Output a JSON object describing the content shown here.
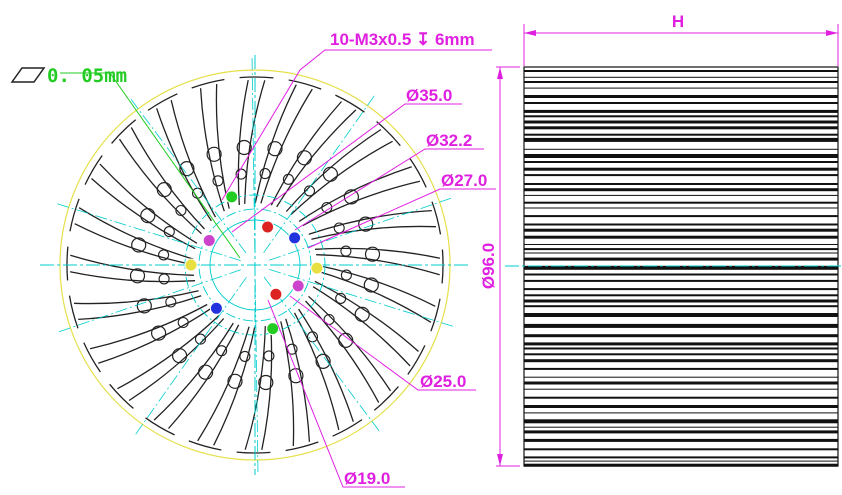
{
  "drawing": {
    "thread_callout": "10-M3x0.5 ↧ 6mm",
    "flatness": "0. 05mm",
    "diameters": [
      "Ø35.0",
      "Ø32.2",
      "Ø27.0",
      "Ø25.0",
      "Ø19.0"
    ],
    "height_label": "H",
    "outer_diameter": "Ø96.0",
    "fin_count": 24,
    "colors": {
      "dimension": "#e020e0",
      "centerline": "#00cccc",
      "outline": "#222222",
      "outer_circle": "#e6e04a",
      "flatness": "#22cc22",
      "hole_markers": [
        "#22cc22",
        "#dd2222",
        "#2233dd",
        "#cc44cc",
        "#e8e040"
      ]
    }
  }
}
